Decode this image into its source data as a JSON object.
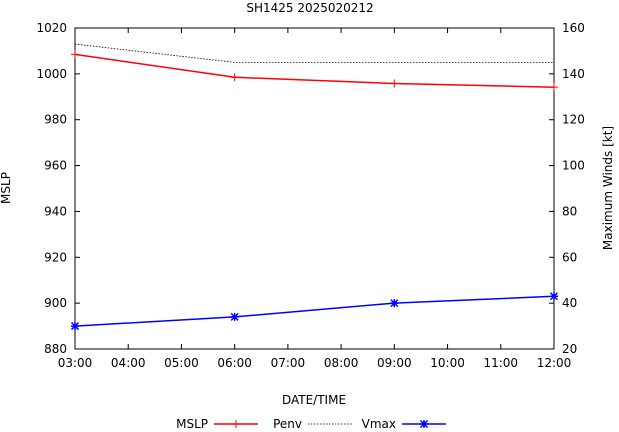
{
  "chart_data": {
    "type": "line",
    "title": "SH1425 2025020212",
    "xlabel": "DATE/TIME",
    "ylabel": "MSLP",
    "y2label": "Maximum Winds [kt]",
    "categories": [
      "03:00",
      "04:00",
      "05:00",
      "06:00",
      "07:00",
      "08:00",
      "09:00",
      "10:00",
      "11:00",
      "12:00"
    ],
    "x_hours": [
      3,
      4,
      5,
      6,
      7,
      8,
      9,
      10,
      11,
      12
    ],
    "xlim": [
      3,
      12
    ],
    "ylim": [
      880,
      1020
    ],
    "y_ticks": [
      880,
      900,
      920,
      940,
      960,
      980,
      1000,
      1020
    ],
    "y2lim": [
      20,
      160
    ],
    "y2_ticks": [
      20,
      40,
      60,
      80,
      100,
      120,
      140,
      160
    ],
    "legend_position": "bottom",
    "series": [
      {
        "name": "MSLP",
        "axis": "y",
        "style": "solid",
        "marker": "plus",
        "color": "#ff0000",
        "x": [
          3,
          6,
          9,
          12
        ],
        "values": [
          1008.5,
          998.5,
          995.8,
          994.2
        ]
      },
      {
        "name": "Penv",
        "axis": "y",
        "style": "dotted",
        "marker": "none",
        "color": "#000000",
        "x": [
          3,
          6,
          9,
          12
        ],
        "values": [
          1013,
          1005,
          1005,
          1005
        ]
      },
      {
        "name": "Vmax",
        "axis": "y2",
        "style": "solid",
        "marker": "star",
        "color": "#0000ff",
        "x": [
          3,
          6,
          9,
          12
        ],
        "values": [
          30,
          34,
          40,
          43
        ]
      }
    ]
  }
}
